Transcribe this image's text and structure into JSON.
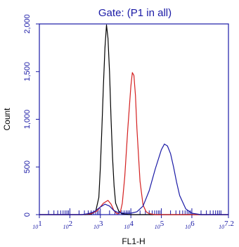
{
  "chart_data": {
    "type": "line",
    "title": "Gate: (P1 in all)",
    "xlabel": "FL1-H",
    "ylabel": "Count",
    "x_scale": "log",
    "xlim": [
      1,
      7.2
    ],
    "ylim": [
      0,
      2000
    ],
    "yticks": [
      {
        "value": 0,
        "label": "0"
      },
      {
        "value": 500,
        "label": "500"
      },
      {
        "value": 1000,
        "label": "1,000"
      },
      {
        "value": 1500,
        "label": "1,500"
      },
      {
        "value": 2000,
        "label": "2,000"
      }
    ],
    "xticks": [
      {
        "value": 1,
        "base": "10",
        "exp": "1"
      },
      {
        "value": 2,
        "base": "10",
        "exp": "2"
      },
      {
        "value": 3,
        "base": "10",
        "exp": "3"
      },
      {
        "value": 4,
        "base": "10",
        "exp": "4"
      },
      {
        "value": 5,
        "base": "10",
        "exp": "5"
      },
      {
        "value": 6,
        "base": "10",
        "exp": "6"
      },
      {
        "value": 7.2,
        "base": "10",
        "exp": "7.2"
      }
    ],
    "grid": false,
    "colors": {
      "frame": "#1a1aa6",
      "text": "#1a1aa6"
    },
    "series": [
      {
        "color": "#000000",
        "x": [
          1.0,
          2.5,
          2.7,
          2.85,
          2.95,
          3.0,
          3.05,
          3.1,
          3.15,
          3.2,
          3.25,
          3.3,
          3.35,
          3.4,
          3.45,
          3.5,
          3.6,
          3.7,
          3.8,
          4.0,
          7.2
        ],
        "y": [
          0,
          0,
          5,
          40,
          180,
          500,
          900,
          1350,
          1750,
          1990,
          1850,
          1500,
          1000,
          600,
          300,
          120,
          40,
          10,
          5,
          0,
          0
        ]
      },
      {
        "color": "#d42020",
        "x": [
          1.0,
          2.4,
          2.7,
          2.9,
          3.1,
          3.25,
          3.35,
          3.45,
          3.55,
          3.65,
          3.72,
          3.8,
          3.9,
          4.0,
          4.05,
          4.1,
          4.15,
          4.2,
          4.3,
          4.4,
          4.5,
          4.6,
          4.8,
          7.2
        ],
        "y": [
          0,
          0,
          10,
          40,
          120,
          150,
          110,
          40,
          8,
          20,
          120,
          400,
          900,
          1350,
          1490,
          1460,
          1250,
          900,
          350,
          100,
          30,
          10,
          0,
          0
        ]
      },
      {
        "color": "#1a1aa6",
        "x": [
          1.0,
          2.4,
          2.6,
          2.8,
          3.0,
          3.15,
          3.3,
          3.45,
          3.6,
          3.8,
          4.0,
          4.2,
          4.4,
          4.6,
          4.8,
          5.0,
          5.1,
          5.2,
          5.3,
          5.4,
          5.5,
          5.6,
          5.8,
          6.0,
          6.3,
          7.2
        ],
        "y": [
          0,
          0,
          10,
          30,
          80,
          110,
          90,
          40,
          20,
          15,
          15,
          30,
          90,
          250,
          480,
          680,
          740,
          720,
          640,
          500,
          340,
          200,
          60,
          15,
          0,
          0
        ]
      }
    ]
  }
}
